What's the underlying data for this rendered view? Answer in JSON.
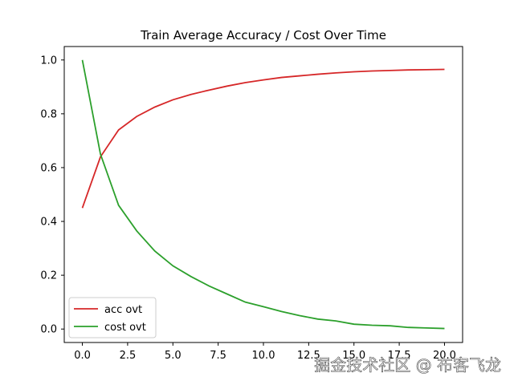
{
  "chart_data": {
    "type": "line",
    "title": "Train Average Accuracy / Cost Over Time",
    "xlabel": "",
    "ylabel": "",
    "xlim": [
      -1,
      21
    ],
    "ylim": [
      -0.05,
      1.05
    ],
    "xticks": [
      0.0,
      2.5,
      5.0,
      7.5,
      10.0,
      12.5,
      15.0,
      17.5,
      20.0
    ],
    "xtick_labels": [
      "0.0",
      "2.5",
      "5.0",
      "7.5",
      "10.0",
      "12.5",
      "15.0",
      "17.5",
      "20.0"
    ],
    "yticks": [
      0.0,
      0.2,
      0.4,
      0.6,
      0.8,
      1.0
    ],
    "ytick_labels": [
      "0.0",
      "0.2",
      "0.4",
      "0.6",
      "0.8",
      "1.0"
    ],
    "grid": false,
    "legend_position": "lower-left",
    "x": [
      0,
      1,
      2,
      3,
      4,
      5,
      6,
      7,
      8,
      9,
      10,
      11,
      12,
      13,
      14,
      15,
      16,
      17,
      18,
      19,
      20
    ],
    "series": [
      {
        "name": "acc ovt",
        "color": "#d62728",
        "values": [
          0.45,
          0.64,
          0.74,
          0.79,
          0.825,
          0.852,
          0.872,
          0.888,
          0.903,
          0.916,
          0.926,
          0.935,
          0.941,
          0.947,
          0.952,
          0.956,
          0.959,
          0.961,
          0.963,
          0.964,
          0.965
        ]
      },
      {
        "name": "cost ovt",
        "color": "#2ca02c",
        "values": [
          1.0,
          0.65,
          0.46,
          0.365,
          0.29,
          0.235,
          0.195,
          0.16,
          0.13,
          0.1,
          0.083,
          0.065,
          0.05,
          0.037,
          0.03,
          0.018,
          0.014,
          0.012,
          0.006,
          0.004,
          0.002
        ]
      }
    ]
  },
  "watermark": {
    "text": "掘金技术社区 @ 布客飞龙"
  }
}
